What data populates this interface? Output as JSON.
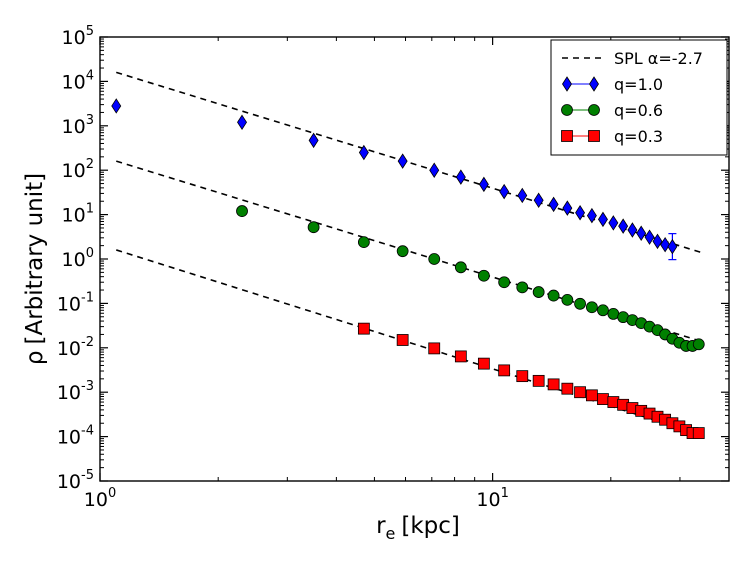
{
  "chart_data": {
    "type": "scatter",
    "xscale": "log",
    "yscale": "log",
    "xlim": [
      1,
      40
    ],
    "ylim": [
      1e-05,
      100000
    ],
    "xlabel": {
      "symbol": "r",
      "subscript": "e",
      "unit": "[kpc]"
    },
    "ylabel": {
      "symbol": "ρ",
      "text": "[Arbitrary unit]"
    },
    "x_ticks": [
      {
        "value": 1,
        "base": "10",
        "exp": "0"
      },
      {
        "value": 10,
        "base": "10",
        "exp": "1"
      }
    ],
    "y_ticks": [
      {
        "value": 1e-05,
        "base": "10",
        "exp": "-5"
      },
      {
        "value": 0.0001,
        "base": "10",
        "exp": "-4"
      },
      {
        "value": 0.001,
        "base": "10",
        "exp": "-3"
      },
      {
        "value": 0.01,
        "base": "10",
        "exp": "-2"
      },
      {
        "value": 0.1,
        "base": "10",
        "exp": "-1"
      },
      {
        "value": 1,
        "base": "10",
        "exp": "0"
      },
      {
        "value": 10,
        "base": "10",
        "exp": "1"
      },
      {
        "value": 100,
        "base": "10",
        "exp": "2"
      },
      {
        "value": 1000,
        "base": "10",
        "exp": "3"
      },
      {
        "value": 10000,
        "base": "10",
        "exp": "4"
      },
      {
        "value": 100000,
        "base": "10",
        "exp": "5"
      }
    ],
    "fit_lines": [
      {
        "name": "fit-q1.0",
        "x": [
          1.1,
          34.0
        ],
        "y": [
          16000,
          1.4
        ]
      },
      {
        "name": "fit-q0.6",
        "x": [
          1.1,
          34.0
        ],
        "y": [
          160,
          0.014
        ]
      },
      {
        "name": "fit-q0.3",
        "x": [
          1.1,
          34.0
        ],
        "y": [
          1.6,
          0.00011
        ]
      }
    ],
    "series": [
      {
        "name": "q=1.0",
        "marker": "diamond",
        "color": "#0000ff",
        "x": [
          1.1,
          2.3,
          3.5,
          4.7,
          5.9,
          7.1,
          8.3,
          9.5,
          10.7,
          11.9,
          13.1,
          14.3,
          15.5,
          16.7,
          17.9,
          19.1,
          20.3,
          21.5,
          22.7,
          23.9,
          25.1,
          26.3,
          27.5,
          28.7
        ],
        "y": [
          2800,
          1200,
          470,
          250,
          160,
          100,
          70,
          48,
          33,
          27,
          21,
          17,
          14,
          11,
          9.5,
          7.8,
          6.5,
          5.5,
          4.5,
          3.8,
          3.1,
          2.5,
          2.1,
          1.9
        ]
      },
      {
        "name": "q=0.6",
        "marker": "circle",
        "color": "#008000",
        "x": [
          2.3,
          3.5,
          4.7,
          5.9,
          7.1,
          8.3,
          9.5,
          10.7,
          11.9,
          13.1,
          14.3,
          15.5,
          16.7,
          17.9,
          19.1,
          20.3,
          21.5,
          22.7,
          23.9,
          25.1,
          26.3,
          27.5,
          28.7,
          29.9,
          31.1,
          32.3,
          33.5
        ],
        "y": [
          12,
          5.2,
          2.4,
          1.5,
          1.0,
          0.65,
          0.42,
          0.3,
          0.23,
          0.18,
          0.15,
          0.12,
          0.098,
          0.082,
          0.07,
          0.058,
          0.049,
          0.042,
          0.036,
          0.03,
          0.025,
          0.02,
          0.016,
          0.013,
          0.011,
          0.011,
          0.012
        ]
      },
      {
        "name": "q=0.3",
        "marker": "square",
        "color": "#ff0000",
        "x": [
          4.7,
          5.9,
          7.1,
          8.3,
          9.5,
          10.7,
          11.9,
          13.1,
          14.3,
          15.5,
          16.7,
          17.9,
          19.1,
          20.3,
          21.5,
          22.7,
          23.9,
          25.1,
          26.3,
          27.5,
          28.7,
          29.9,
          31.1,
          32.3,
          33.5
        ],
        "y": [
          0.027,
          0.015,
          0.0097,
          0.0064,
          0.0044,
          0.0031,
          0.0023,
          0.0018,
          0.0015,
          0.0012,
          0.001,
          0.00085,
          0.0007,
          0.0006,
          0.00052,
          0.00044,
          0.00038,
          0.00033,
          0.00028,
          0.00024,
          0.0002,
          0.00017,
          0.00014,
          0.00012,
          0.00012
        ]
      }
    ],
    "legend": {
      "position": "top-right",
      "entries": [
        {
          "label": "SPL α=-2.7",
          "style": "dashed-line",
          "color": "#000000"
        },
        {
          "label": "q=1.0",
          "style": "diamond",
          "color": "#0000ff"
        },
        {
          "label": "q=0.6",
          "style": "circle",
          "color": "#008000"
        },
        {
          "label": "q=0.3",
          "style": "square",
          "color": "#ff0000"
        }
      ]
    }
  }
}
